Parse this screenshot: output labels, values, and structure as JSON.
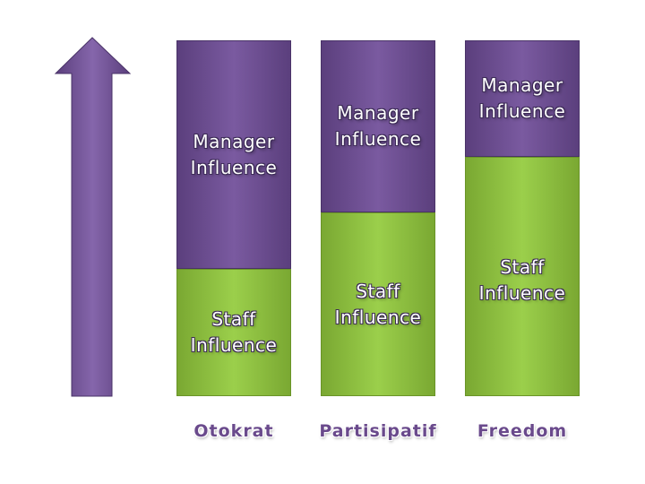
{
  "columns": [
    {
      "label": "Otokrat",
      "top": "Manager Influence",
      "bottom": "Staff Influence"
    },
    {
      "label": "Partisipatif",
      "top": "Manager Influence",
      "bottom": "Staff Influence"
    },
    {
      "label": "Freedom",
      "top": "Manager Influence",
      "bottom": "Staff Influence"
    }
  ]
}
